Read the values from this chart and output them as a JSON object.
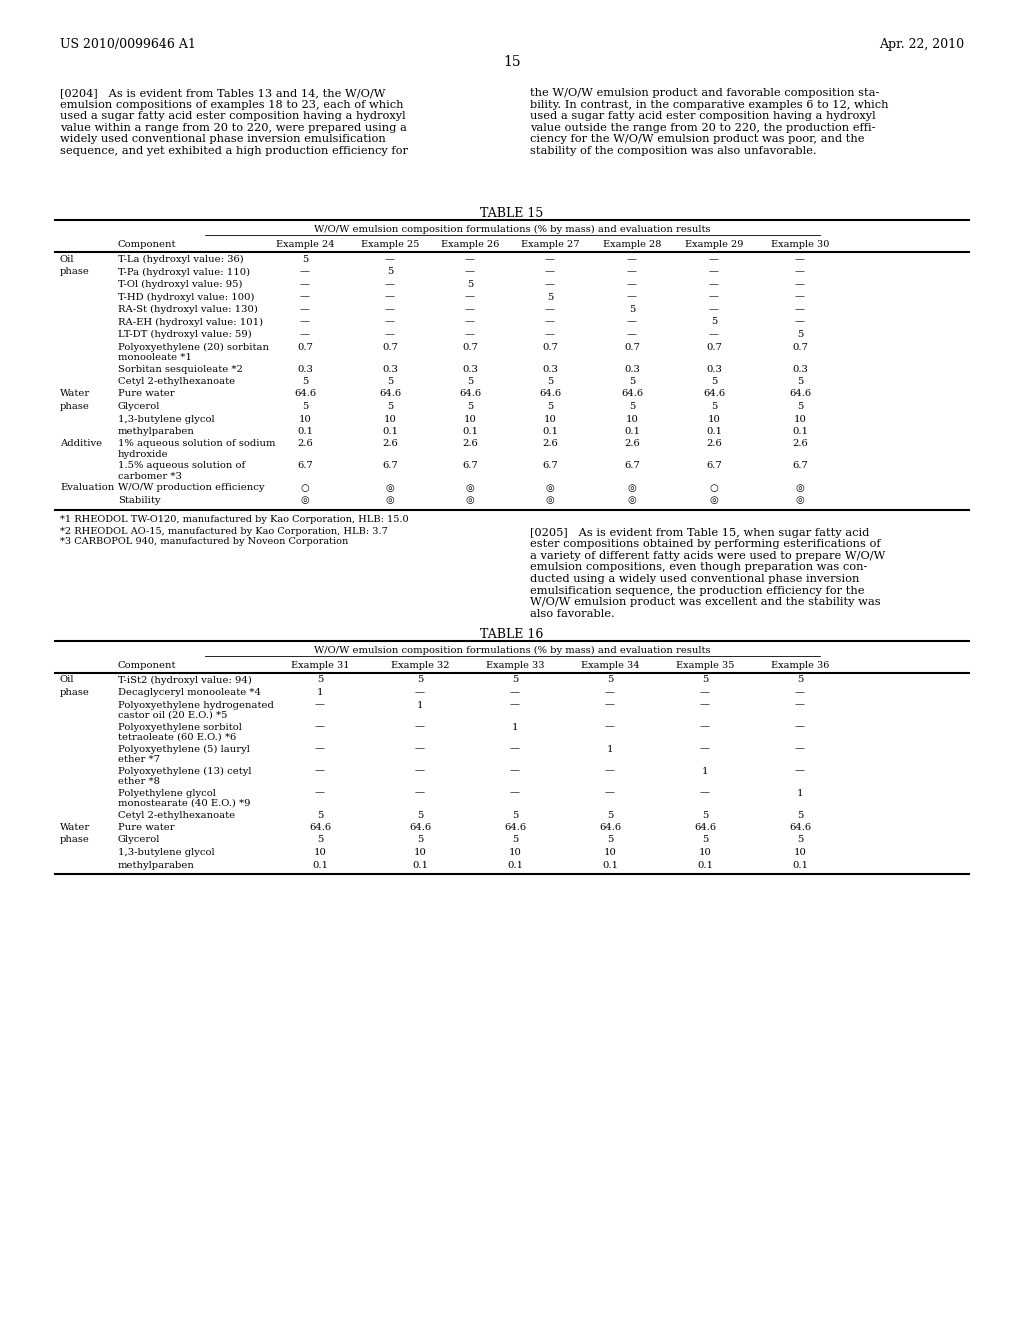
{
  "title_left": "US 2010/0099646 A1",
  "title_right": "Apr. 22, 2010",
  "page_number": "15",
  "para_0204_left": "[0204]   As is evident from Tables 13 and 14, the W/O/W\nemulsion compositions of examples 18 to 23, each of which\nused a sugar fatty acid ester composition having a hydroxyl\nvalue within a range from 20 to 220, were prepared using a\nwidely used conventional phase inversion emulsification\nsequence, and yet exhibited a high production efficiency for",
  "para_0204_right": "the W/O/W emulsion product and favorable composition sta-\nbility. In contrast, in the comparative examples 6 to 12, which\nused a sugar fatty acid ester composition having a hydroxyl\nvalue outside the range from 20 to 220, the production effi-\nciency for the W/O/W emulsion product was poor, and the\nstability of the composition was also unfavorable.",
  "table15_title": "TABLE 15",
  "table15_subtitle": "W/O/W emulsion composition formulations (% by mass) and evaluation results",
  "table15_cols": [
    "Component",
    "Example 24",
    "Example 25",
    "Example 26",
    "Example 27",
    "Example 28",
    "Example 29",
    "Example 30"
  ],
  "table15_rows": [
    [
      "Oil",
      "T-La (hydroxyl value: 36)",
      "5",
      "—",
      "—",
      "—",
      "—",
      "—",
      "—"
    ],
    [
      "phase",
      "T-Pa (hydroxyl value: 110)",
      "—",
      "5",
      "—",
      "—",
      "—",
      "—",
      "—"
    ],
    [
      "",
      "T-Ol (hydroxyl value: 95)",
      "—",
      "—",
      "5",
      "—",
      "—",
      "—",
      "—"
    ],
    [
      "",
      "T-HD (hydroxyl value: 100)",
      "—",
      "—",
      "—",
      "5",
      "—",
      "—",
      "—"
    ],
    [
      "",
      "RA-St (hydroxyl value: 130)",
      "—",
      "—",
      "—",
      "—",
      "5",
      "—",
      "—"
    ],
    [
      "",
      "RA-EH (hydroxyl value: 101)",
      "—",
      "—",
      "—",
      "—",
      "—",
      "5",
      "—"
    ],
    [
      "",
      "LT-DT (hydroxyl value: 59)",
      "—",
      "—",
      "—",
      "—",
      "—",
      "—",
      "5"
    ],
    [
      "",
      "Polyoxyethylene (20) sorbitan\nmonooleate *1",
      "0.7",
      "0.7",
      "0.7",
      "0.7",
      "0.7",
      "0.7",
      "0.7"
    ],
    [
      "",
      "Sorbitan sesquioleate *2",
      "0.3",
      "0.3",
      "0.3",
      "0.3",
      "0.3",
      "0.3",
      "0.3"
    ],
    [
      "",
      "Cetyl 2-ethylhexanoate",
      "5",
      "5",
      "5",
      "5",
      "5",
      "5",
      "5"
    ],
    [
      "Water",
      "Pure water",
      "64.6",
      "64.6",
      "64.6",
      "64.6",
      "64.6",
      "64.6",
      "64.6"
    ],
    [
      "phase",
      "Glycerol",
      "5",
      "5",
      "5",
      "5",
      "5",
      "5",
      "5"
    ],
    [
      "",
      "1,3-butylene glycol",
      "10",
      "10",
      "10",
      "10",
      "10",
      "10",
      "10"
    ],
    [
      "",
      "methylparaben",
      "0.1",
      "0.1",
      "0.1",
      "0.1",
      "0.1",
      "0.1",
      "0.1"
    ],
    [
      "Additive",
      "1% aqueous solution of sodium\nhydroxide",
      "2.6",
      "2.6",
      "2.6",
      "2.6",
      "2.6",
      "2.6",
      "2.6"
    ],
    [
      "",
      "1.5% aqueous solution of\ncarbomer *3",
      "6.7",
      "6.7",
      "6.7",
      "6.7",
      "6.7",
      "6.7",
      "6.7"
    ],
    [
      "Evaluation",
      "W/O/W production efficiency",
      "○",
      "◎",
      "◎",
      "◎",
      "◎",
      "○",
      "◎"
    ],
    [
      "",
      "Stability",
      "◎",
      "◎",
      "◎",
      "◎",
      "◎",
      "◎",
      "◎"
    ]
  ],
  "table15_footnotes": [
    "*1 RHEODOL TW-O120, manufactured by Kao Corporation, HLB: 15.0",
    "*2 RHEODOL AO-15, manufactured by Kao Corporation, HLB: 3.7",
    "*3 CARBOPOL 940, manufactured by Noveon Corporation"
  ],
  "para_0205_right": "[0205]   As is evident from Table 15, when sugar fatty acid\nester compositions obtained by performing esterifications of\na variety of different fatty acids were used to prepare W/O/W\nemulsion compositions, even though preparation was con-\nducted using a widely used conventional phase inversion\nemulsification sequence, the production efficiency for the\nW/O/W emulsion product was excellent and the stability was\nalso favorable.",
  "table16_title": "TABLE 16",
  "table16_subtitle": "W/O/W emulsion composition formulations (% by mass) and evaluation results",
  "table16_cols": [
    "Component",
    "Example 31",
    "Example 32",
    "Example 33",
    "Example 34",
    "Example 35",
    "Example 36"
  ],
  "table16_rows": [
    [
      "Oil",
      "T-iSt2 (hydroxyl value: 94)",
      "5",
      "5",
      "5",
      "5",
      "5",
      "5"
    ],
    [
      "phase",
      "Decaglyceryl monooleate *4",
      "1",
      "—",
      "—",
      "—",
      "—",
      "—"
    ],
    [
      "",
      "Polyoxyethylene hydrogenated\ncastor oil (20 E.O.) *5",
      "—",
      "1",
      "—",
      "—",
      "—",
      "—"
    ],
    [
      "",
      "Polyoxyethylene sorbitol\ntetraoleate (60 E.O.) *6",
      "—",
      "—",
      "1",
      "—",
      "—",
      "—"
    ],
    [
      "",
      "Polyoxyethylene (5) lauryl\nether *7",
      "—",
      "—",
      "—",
      "1",
      "—",
      "—"
    ],
    [
      "",
      "Polyoxyethylene (13) cetyl\nether *8",
      "—",
      "—",
      "—",
      "—",
      "1",
      "—"
    ],
    [
      "",
      "Polyethylene glycol\nmonostearate (40 E.O.) *9",
      "—",
      "—",
      "—",
      "—",
      "—",
      "1"
    ],
    [
      "",
      "Cetyl 2-ethylhexanoate",
      "5",
      "5",
      "5",
      "5",
      "5",
      "5"
    ],
    [
      "Water",
      "Pure water",
      "64.6",
      "64.6",
      "64.6",
      "64.6",
      "64.6",
      "64.6"
    ],
    [
      "phase",
      "Glycerol",
      "5",
      "5",
      "5",
      "5",
      "5",
      "5"
    ],
    [
      "",
      "1,3-butylene glycol",
      "10",
      "10",
      "10",
      "10",
      "10",
      "10"
    ],
    [
      "",
      "methylparaben",
      "0.1",
      "0.1",
      "0.1",
      "0.1",
      "0.1",
      "0.1"
    ]
  ]
}
